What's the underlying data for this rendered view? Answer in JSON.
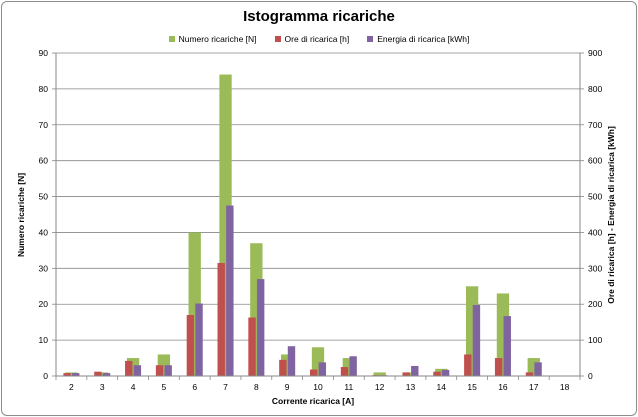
{
  "chart_data": {
    "type": "bar",
    "title": "Istogramma ricariche",
    "xlabel": "Corrente ricarica [A]",
    "ylabel_left": "Numero ricariche [N]",
    "ylabel_right": "Ore di ricarica [h] - Energia di ricarica [kWh]",
    "ylim_left": [
      0,
      90
    ],
    "ylim_right": [
      0,
      900
    ],
    "yticks_left": [
      "0",
      "10",
      "20",
      "30",
      "40",
      "50",
      "60",
      "70",
      "80",
      "90"
    ],
    "yticks_right": [
      "0",
      "100",
      "200",
      "300",
      "400",
      "500",
      "600",
      "700",
      "800",
      "900"
    ],
    "grid": true,
    "legend_position": "top",
    "categories": [
      "2",
      "3",
      "4",
      "5",
      "6",
      "7",
      "8",
      "9",
      "10",
      "11",
      "12",
      "13",
      "14",
      "15",
      "16",
      "17",
      "18"
    ],
    "series": [
      {
        "name": "Numero ricariche [N]",
        "axis": "left",
        "color": "#9bbb59",
        "values": [
          1,
          1,
          5,
          6,
          40,
          84,
          37,
          6,
          8,
          5,
          1,
          1,
          2,
          25,
          23,
          5,
          0
        ]
      },
      {
        "name": "Ore di ricarica [h]",
        "axis": "right",
        "color": "#c0504d",
        "values": [
          8,
          12,
          42,
          30,
          170,
          315,
          163,
          45,
          18,
          25,
          2,
          10,
          12,
          60,
          50,
          10,
          0
        ]
      },
      {
        "name": "Energia di ricarica [kWh]",
        "axis": "right",
        "color": "#8064a2",
        "values": [
          8,
          8,
          30,
          30,
          202,
          475,
          270,
          83,
          38,
          55,
          2,
          28,
          17,
          198,
          167,
          38,
          0
        ]
      }
    ]
  }
}
